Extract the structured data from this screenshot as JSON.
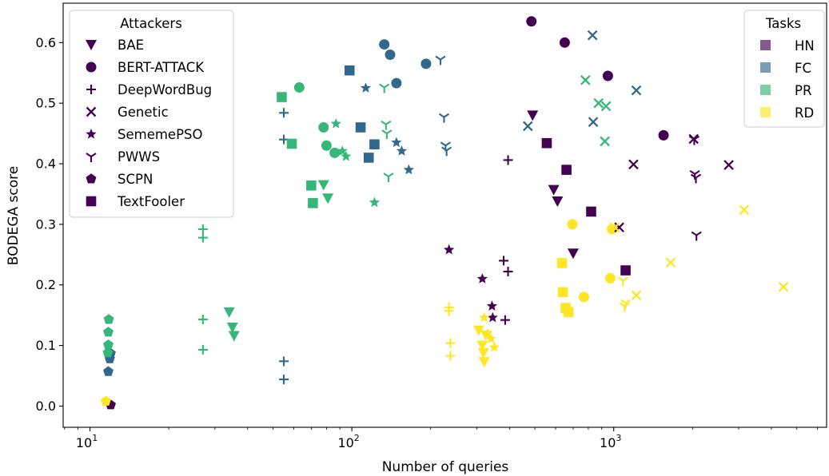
{
  "chart_data": {
    "type": "scatter",
    "title": "",
    "xlabel": "Number of queries",
    "ylabel": "BODEGA score",
    "x_scale": "log",
    "xlim": [
      7.9,
      6500
    ],
    "ylim": [
      -0.035,
      0.665
    ],
    "x_ticks": [
      {
        "value": 10,
        "label": "10",
        "sup": "1"
      },
      {
        "value": 100,
        "label": "10",
        "sup": "2"
      },
      {
        "value": 1000,
        "label": "10",
        "sup": "3"
      }
    ],
    "y_ticks": [
      "0.0",
      "0.1",
      "0.2",
      "0.3",
      "0.4",
      "0.5",
      "0.6"
    ],
    "grid": false,
    "legends": {
      "attackers": {
        "title": "Attackers",
        "placement": "upper-left",
        "entries": [
          {
            "name": "BAE",
            "marker": "triangle-down"
          },
          {
            "name": "BERT-ATTACK",
            "marker": "circle"
          },
          {
            "name": "DeepWordBug",
            "marker": "plus"
          },
          {
            "name": "Genetic",
            "marker": "x"
          },
          {
            "name": "SememePSO",
            "marker": "star"
          },
          {
            "name": "PWWS",
            "marker": "tri-down"
          },
          {
            "name": "SCPN",
            "marker": "pentagon"
          },
          {
            "name": "TextFooler",
            "marker": "square"
          }
        ]
      },
      "tasks": {
        "title": "Tasks",
        "placement": "upper-right",
        "entries": [
          {
            "name": "HN",
            "color": "#440154"
          },
          {
            "name": "FC",
            "color": "#31688e"
          },
          {
            "name": "PR",
            "color": "#35b779"
          },
          {
            "name": "RD",
            "color": "#fde725"
          }
        ]
      }
    },
    "series": [
      {
        "attacker": "BAE",
        "task": "HN",
        "points": [
          [
            490,
            0.48
          ],
          [
            590,
            0.357
          ],
          [
            610,
            0.338
          ],
          [
            700,
            0.252
          ]
        ]
      },
      {
        "attacker": "BAE",
        "task": "PR",
        "points": [
          [
            78,
            0.365
          ],
          [
            81,
            0.343
          ],
          [
            34,
            0.155
          ],
          [
            35,
            0.13
          ],
          [
            35.5,
            0.116
          ]
        ]
      },
      {
        "attacker": "BAE",
        "task": "RD",
        "points": [
          [
            305,
            0.125
          ],
          [
            325,
            0.117
          ],
          [
            315,
            0.1
          ],
          [
            318,
            0.088
          ],
          [
            320,
            0.073
          ]
        ]
      },
      {
        "attacker": "BERT-ATTACK",
        "task": "HN",
        "points": [
          [
            485,
            0.635
          ],
          [
            650,
            0.6
          ],
          [
            950,
            0.545
          ],
          [
            1550,
            0.447
          ]
        ]
      },
      {
        "attacker": "BERT-ATTACK",
        "task": "FC",
        "points": [
          [
            133,
            0.597
          ],
          [
            140,
            0.58
          ],
          [
            148,
            0.533
          ],
          [
            192,
            0.565
          ]
        ]
      },
      {
        "attacker": "BERT-ATTACK",
        "task": "PR",
        "points": [
          [
            63,
            0.526
          ],
          [
            78,
            0.46
          ],
          [
            80,
            0.43
          ],
          [
            86,
            0.418
          ]
        ]
      },
      {
        "attacker": "BERT-ATTACK",
        "task": "RD",
        "points": [
          [
            695,
            0.3
          ],
          [
            770,
            0.18
          ],
          [
            970,
            0.211
          ],
          [
            985,
            0.292
          ]
        ]
      },
      {
        "attacker": "DeepWordBug",
        "task": "HN",
        "points": [
          [
            395,
            0.406
          ],
          [
            380,
            0.24
          ],
          [
            395,
            0.222
          ],
          [
            385,
            0.142
          ]
        ]
      },
      {
        "attacker": "DeepWordBug",
        "task": "FC",
        "points": [
          [
            55,
            0.484
          ],
          [
            55,
            0.44
          ],
          [
            55,
            0.074
          ],
          [
            55,
            0.044
          ]
        ]
      },
      {
        "attacker": "DeepWordBug",
        "task": "PR",
        "points": [
          [
            27,
            0.292
          ],
          [
            27,
            0.278
          ],
          [
            27,
            0.143
          ],
          [
            27,
            0.093
          ]
        ]
      },
      {
        "attacker": "DeepWordBug",
        "task": "RD",
        "points": [
          [
            235,
            0.163
          ],
          [
            235,
            0.157
          ],
          [
            238,
            0.104
          ],
          [
            238,
            0.083
          ]
        ]
      },
      {
        "attacker": "Genetic",
        "task": "HN",
        "points": [
          [
            1050,
            0.295
          ],
          [
            1190,
            0.399
          ],
          [
            2020,
            0.441
          ],
          [
            2750,
            0.398
          ]
        ]
      },
      {
        "attacker": "Genetic",
        "task": "FC",
        "points": [
          [
            470,
            0.462
          ],
          [
            830,
            0.612
          ],
          [
            835,
            0.469
          ],
          [
            1220,
            0.521
          ]
        ]
      },
      {
        "attacker": "Genetic",
        "task": "PR",
        "points": [
          [
            780,
            0.538
          ],
          [
            875,
            0.5
          ],
          [
            935,
            0.495
          ],
          [
            925,
            0.437
          ]
        ]
      },
      {
        "attacker": "Genetic",
        "task": "RD",
        "points": [
          [
            1010,
            0.295
          ],
          [
            1650,
            0.237
          ],
          [
            1220,
            0.183
          ],
          [
            3150,
            0.324
          ],
          [
            4450,
            0.197
          ]
        ]
      },
      {
        "attacker": "SememePSO",
        "task": "HN",
        "points": [
          [
            235,
            0.258
          ],
          [
            315,
            0.21
          ],
          [
            343,
            0.165
          ],
          [
            345,
            0.146
          ]
        ]
      },
      {
        "attacker": "SememePSO",
        "task": "FC",
        "points": [
          [
            113,
            0.525
          ],
          [
            148,
            0.435
          ],
          [
            155,
            0.421
          ],
          [
            165,
            0.39
          ]
        ]
      },
      {
        "attacker": "SememePSO",
        "task": "PR",
        "points": [
          [
            87,
            0.466
          ],
          [
            92,
            0.421
          ],
          [
            95,
            0.412
          ],
          [
            122,
            0.336
          ]
        ]
      },
      {
        "attacker": "SememePSO",
        "task": "RD",
        "points": [
          [
            320,
            0.146
          ],
          [
            330,
            0.12
          ],
          [
            340,
            0.111
          ],
          [
            350,
            0.097
          ]
        ]
      },
      {
        "attacker": "PWWS",
        "task": "HN",
        "points": [
          [
            2030,
            0.44
          ],
          [
            2040,
            0.383
          ],
          [
            2060,
            0.377
          ],
          [
            2070,
            0.282
          ]
        ]
      },
      {
        "attacker": "PWWS",
        "task": "FC",
        "points": [
          [
            218,
            0.572
          ],
          [
            225,
            0.477
          ],
          [
            228,
            0.43
          ],
          [
            230,
            0.422
          ]
        ]
      },
      {
        "attacker": "PWWS",
        "task": "PR",
        "points": [
          [
            133,
            0.526
          ],
          [
            135,
            0.465
          ],
          [
            136,
            0.45
          ],
          [
            138,
            0.379
          ]
        ]
      },
      {
        "attacker": "PWWS",
        "task": "RD",
        "points": [
          [
            1085,
            0.207
          ],
          [
            1100,
            0.165
          ],
          [
            1110,
            0.17
          ]
        ]
      },
      {
        "attacker": "SCPN",
        "task": "HN",
        "points": [
          [
            12,
            0.002
          ]
        ]
      },
      {
        "attacker": "SCPN",
        "task": "FC",
        "points": [
          [
            12,
            0.087
          ],
          [
            11.9,
            0.078
          ],
          [
            11.75,
            0.057
          ]
        ]
      },
      {
        "attacker": "SCPN",
        "task": "PR",
        "points": [
          [
            11.8,
            0.143
          ],
          [
            11.75,
            0.122
          ],
          [
            11.75,
            0.101
          ],
          [
            11.7,
            0.088
          ]
        ]
      },
      {
        "attacker": "SCPN",
        "task": "RD",
        "points": [
          [
            11.5,
            0.008
          ]
        ]
      },
      {
        "attacker": "TextFooler",
        "task": "HN",
        "points": [
          [
            555,
            0.434
          ],
          [
            660,
            0.39
          ],
          [
            820,
            0.321
          ],
          [
            1110,
            0.224
          ]
        ]
      },
      {
        "attacker": "TextFooler",
        "task": "FC",
        "points": [
          [
            98,
            0.554
          ],
          [
            108,
            0.46
          ],
          [
            122,
            0.432
          ],
          [
            116,
            0.41
          ]
        ]
      },
      {
        "attacker": "TextFooler",
        "task": "PR",
        "points": [
          [
            54,
            0.51
          ],
          [
            59,
            0.433
          ],
          [
            70,
            0.364
          ],
          [
            71,
            0.335
          ]
        ]
      },
      {
        "attacker": "TextFooler",
        "task": "RD",
        "points": [
          [
            635,
            0.236
          ],
          [
            640,
            0.188
          ],
          [
            655,
            0.162
          ],
          [
            672,
            0.155
          ]
        ]
      }
    ]
  }
}
